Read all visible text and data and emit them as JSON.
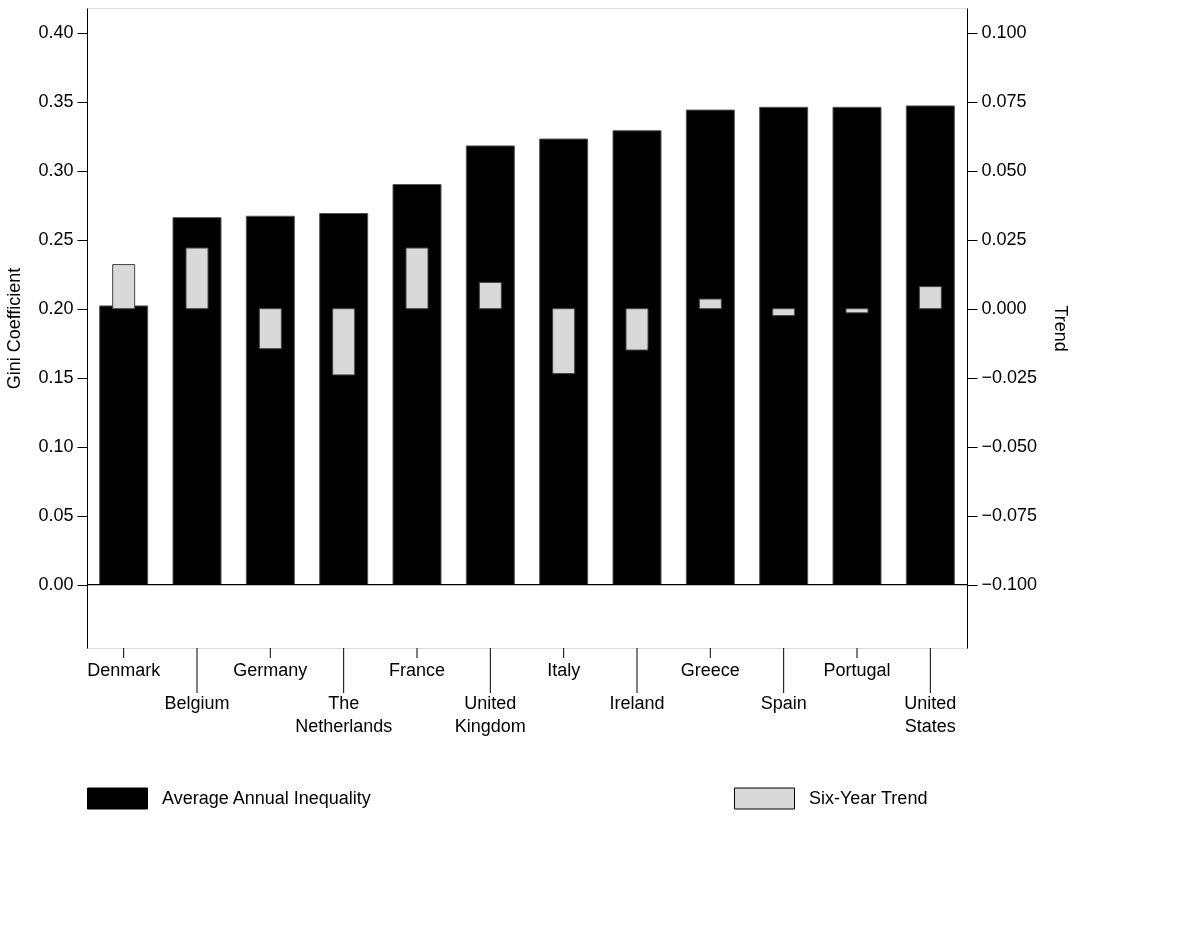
{
  "chart_data": {
    "type": "bar",
    "ylabel": "Gini Coefficient",
    "y2label": "Trend",
    "categories": [
      "Denmark",
      "Belgium",
      "Germany",
      "The Netherlands",
      "France",
      "United Kingdom",
      "Italy",
      "Ireland",
      "Greece",
      "Spain",
      "Portugal",
      "United States"
    ],
    "series": [
      {
        "name": "Average Annual Inequality",
        "color": "#000000",
        "values": [
          0.202,
          0.266,
          0.267,
          0.269,
          0.29,
          0.318,
          0.323,
          0.329,
          0.344,
          0.346,
          0.346,
          0.347
        ]
      },
      {
        "name": "Six-Year Trend",
        "color": "#d9d9d9",
        "axis": "y2",
        "values": [
          0.016,
          0.022,
          -0.0145,
          -0.024,
          0.022,
          0.0095,
          -0.0235,
          -0.015,
          0.0035,
          -0.0025,
          -0.0015,
          0.008
        ]
      }
    ],
    "ylim": [
      -0.046,
      0.418
    ],
    "yticks": [
      {
        "value": 0,
        "label": "0.00"
      },
      {
        "value": 0.05,
        "label": "0.05"
      },
      {
        "value": 0.1,
        "label": "0.10"
      },
      {
        "value": 0.15,
        "label": "0.15"
      },
      {
        "value": 0.2,
        "label": "0.20"
      },
      {
        "value": 0.25,
        "label": "0.25"
      },
      {
        "value": 0.3,
        "label": "0.30"
      },
      {
        "value": 0.35,
        "label": "0.35"
      },
      {
        "value": 0.4,
        "label": "0.40"
      }
    ],
    "y2lim": [
      -0.123,
      0.109
    ],
    "y2ticks": [
      {
        "value": -0.1,
        "label": "−0.100"
      },
      {
        "value": -0.075,
        "label": "−0.075"
      },
      {
        "value": -0.05,
        "label": "−0.050"
      },
      {
        "value": -0.025,
        "label": "−0.025"
      },
      {
        "value": 0,
        "label": "0.000"
      },
      {
        "value": 0.025,
        "label": "0.025"
      },
      {
        "value": 0.05,
        "label": "0.050"
      },
      {
        "value": 0.075,
        "label": "0.075"
      },
      {
        "value": 0.1,
        "label": "0.100"
      }
    ],
    "ref_lines": [
      {
        "axis": "y",
        "value": 0
      }
    ],
    "legend": "bottom",
    "grid": false
  }
}
